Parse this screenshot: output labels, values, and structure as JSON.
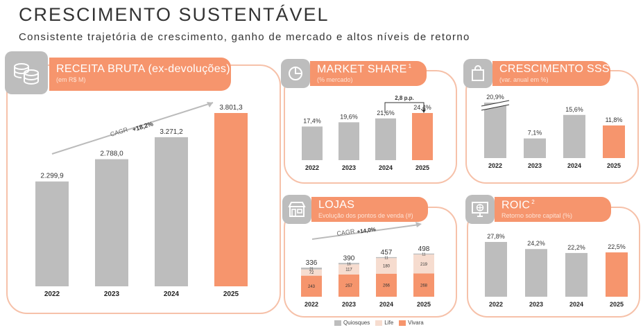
{
  "page": {
    "title": "CRESCIMENTO SUSTENTÁVEL",
    "subtitle": "Consistente trajetória de crescimento, ganho de mercado e altos níveis de retorno"
  },
  "panels": {
    "receita": {
      "title": "RECEITA BRUTA (ex-devoluções)",
      "subtitle": "(em R$ M)",
      "icon": "coins-icon"
    },
    "market": {
      "title": "MARKET SHARE",
      "footnote": "1",
      "subtitle": "(% mercado)",
      "icon": "pie-chart-icon"
    },
    "sss": {
      "title": "CRESCIMENTO SSS",
      "subtitle": "(var. anual em %)",
      "icon": "shopping-bag-icon"
    },
    "lojas": {
      "title": "LOJAS",
      "subtitle": "Evolução dos pontos de venda (#)",
      "icon": "storefront-icon"
    },
    "roic": {
      "title": "ROIC",
      "footnote": "2",
      "subtitle": "Retorno sobre capital (%)",
      "icon": "computer-globe-icon"
    }
  },
  "colors": {
    "gray": "#bdbdbd",
    "orange": "#f6956d",
    "life": "#f6dccf",
    "border": "#f6c1a9"
  },
  "chart_data": [
    {
      "id": "receita",
      "type": "bar",
      "categories": [
        "2022",
        "2023",
        "2024",
        "2025"
      ],
      "values": [
        2299.9,
        2788.0,
        3271.2,
        3801.3
      ],
      "labels": [
        "2.299,9",
        "2.788,0",
        "3.271,2",
        "3.801,3"
      ],
      "highlight_last": true,
      "annotation": {
        "label": "CAGR",
        "value": "+18,2%"
      }
    },
    {
      "id": "market",
      "type": "bar",
      "categories": [
        "2022",
        "2023",
        "2024",
        "2025"
      ],
      "values": [
        17.4,
        19.6,
        21.6,
        24.4
      ],
      "labels": [
        "17,4%",
        "19,6%",
        "21,6%",
        "24,4%"
      ],
      "highlight_last": true,
      "annotation": {
        "label": "2,8 p.p."
      }
    },
    {
      "id": "sss",
      "type": "bar",
      "categories": [
        "2022",
        "2023",
        "2024",
        "2025"
      ],
      "values": [
        20.9,
        7.1,
        15.6,
        11.8
      ],
      "labels": [
        "20,9%",
        "7,1%",
        "15,6%",
        "11,8%"
      ],
      "highlight_last": true,
      "axis_break_on_first": true
    },
    {
      "id": "lojas",
      "type": "bar",
      "stacked": true,
      "categories": [
        "2022",
        "2023",
        "2024",
        "2025"
      ],
      "series": [
        {
          "name": "Vivara",
          "values": [
            243,
            257,
            266,
            268
          ],
          "labels": [
            "243",
            "257",
            "266",
            "268"
          ]
        },
        {
          "name": "Life",
          "values": [
            72,
            117,
            180,
            219
          ],
          "labels": [
            "72",
            "117",
            "180",
            "219"
          ]
        },
        {
          "name": "Quiosques",
          "values": [
            21,
            16,
            11,
            11
          ],
          "labels": [
            "21",
            "16",
            "11",
            "11"
          ]
        }
      ],
      "totals": [
        "336",
        "390",
        "457",
        "498"
      ],
      "annotation": {
        "label": "CAGR",
        "value": "+14,0%"
      },
      "legend": [
        "Quiosques",
        "Life",
        "Vivara"
      ]
    },
    {
      "id": "roic",
      "type": "bar",
      "categories": [
        "2022",
        "2023",
        "2024",
        "2025"
      ],
      "values": [
        27.8,
        24.2,
        22.2,
        22.5
      ],
      "labels": [
        "27,8%",
        "24,2%",
        "22,2%",
        "22,5%"
      ],
      "highlight_last": true
    }
  ]
}
